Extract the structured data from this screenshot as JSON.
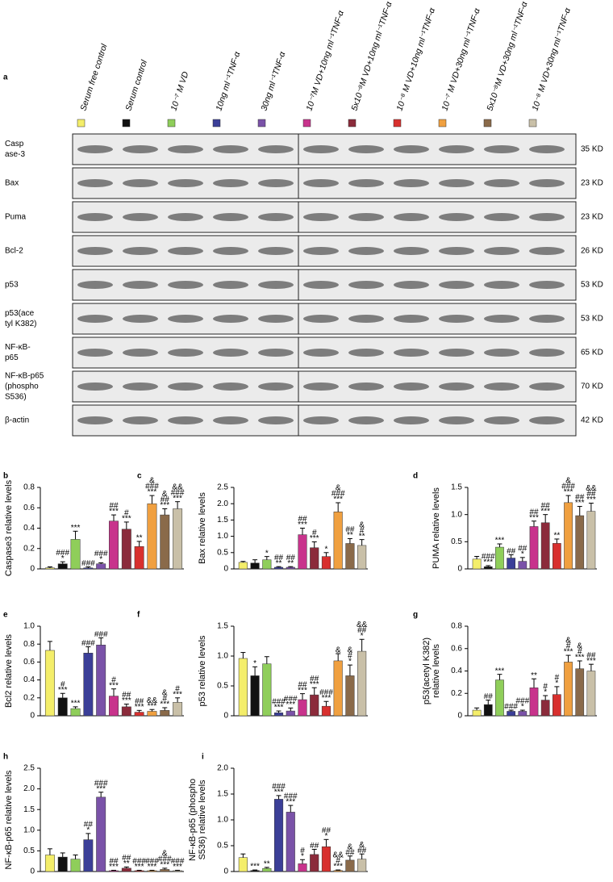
{
  "panel_a": {
    "label": "a",
    "legend": [
      {
        "label": "Serum free control",
        "color": "#f4ee6a"
      },
      {
        "label": "Serum control",
        "color": "#111111"
      },
      {
        "label": "10⁻⁷ M VD",
        "color": "#8fce5a"
      },
      {
        "label": "10ng ml⁻¹TNF-α",
        "color": "#3b3f98"
      },
      {
        "label": "30ng ml⁻¹TNF-α",
        "color": "#7a52a8"
      },
      {
        "label": "10⁻⁷M VD+10ng ml⁻¹TNF-α",
        "color": "#c8338c"
      },
      {
        "label": "5x10⁻⁸M VD+10ng ml⁻¹TNF-α",
        "color": "#8b2b3b"
      },
      {
        "label": "10⁻⁸ M VD+10ng ml⁻¹TNF-α",
        "color": "#d8302e"
      },
      {
        "label": "10⁻⁷ M VD+30ng ml⁻¹TNF-α",
        "color": "#f0a040"
      },
      {
        "label": "5x10⁻⁸M VD+30ng ml⁻¹TNF-α",
        "color": "#8a6a4a"
      },
      {
        "label": "10⁻⁸ M VD+30ng ml⁻¹TNF-α",
        "color": "#c9c0a8"
      }
    ],
    "blots": [
      {
        "lines": [
          "Casp",
          "ase-3"
        ],
        "size": "35 KD"
      },
      {
        "lines": [
          "Bax"
        ],
        "size": "23 KD"
      },
      {
        "lines": [
          "Puma"
        ],
        "size": "23 KD"
      },
      {
        "lines": [
          "Bcl-2"
        ],
        "size": "26 KD"
      },
      {
        "lines": [
          "p53"
        ],
        "size": "53 KD"
      },
      {
        "lines": [
          "p53(ace",
          "tyl K382)"
        ],
        "size": "53 KD"
      },
      {
        "lines": [
          "NF-κB-",
          "p65"
        ],
        "size": "65 KD"
      },
      {
        "lines": [
          "NF-κB-p65",
          "(phospho",
          "S536)"
        ],
        "size": "70 KD"
      },
      {
        "lines": [
          "β-actin"
        ],
        "size": "42 KD"
      }
    ]
  },
  "chart_data": [
    {
      "type": "bar",
      "panel": "b",
      "ylabel": [
        "Caspase3 relative levels"
      ],
      "values": [
        0.01,
        0.05,
        0.29,
        0.01,
        0.05,
        0.47,
        0.39,
        0.22,
        0.64,
        0.53,
        0.59
      ],
      "errors": [
        0.01,
        0.02,
        0.08,
        0.01,
        0.01,
        0.06,
        0.07,
        0.05,
        0.08,
        0.06,
        0.07
      ],
      "annotations": [
        [],
        [
          "###",
          "*"
        ],
        [
          "***"
        ],
        [
          "###"
        ],
        [
          "###",
          "*"
        ],
        [
          "##",
          "***"
        ],
        [
          "#",
          "***"
        ],
        [
          "**"
        ],
        [
          "&",
          "###",
          "***"
        ],
        [
          "&",
          "##",
          "***"
        ],
        [
          "&&",
          "###",
          "***"
        ]
      ],
      "ylim": [
        0,
        0.8
      ],
      "yticks": [
        0,
        0.2,
        0.4,
        0.6,
        0.8
      ]
    },
    {
      "type": "bar",
      "panel": "c",
      "ylabel": [
        "Bax relative levels"
      ],
      "values": [
        0.2,
        0.18,
        0.28,
        0.05,
        0.05,
        1.05,
        0.65,
        0.38,
        1.75,
        0.78,
        0.72
      ],
      "errors": [
        0.03,
        0.1,
        0.1,
        0.02,
        0.02,
        0.2,
        0.18,
        0.12,
        0.28,
        0.15,
        0.18
      ],
      "annotations": [
        [],
        [],
        [
          "*"
        ],
        [
          "##",
          "**"
        ],
        [
          "##",
          "**"
        ],
        [
          "##",
          "***"
        ],
        [
          "#",
          "***"
        ],
        [
          "*"
        ],
        [
          "&",
          "###",
          "***"
        ],
        [
          "##",
          "**"
        ],
        [
          "&",
          "#",
          "**"
        ]
      ],
      "ylim": [
        0,
        2.5
      ],
      "yticks": [
        0,
        0.5,
        {
          "value": 1,
          "label": "1.0"
        },
        1.5,
        {
          "value": 2,
          "label": "2.0"
        },
        2.5
      ]
    },
    {
      "type": "bar",
      "panel": "d",
      "ylabel": [
        "PUMA relative levels"
      ],
      "values": [
        0.18,
        0.04,
        0.4,
        0.2,
        0.14,
        0.78,
        0.85,
        0.47,
        1.22,
        0.98,
        1.06
      ],
      "errors": [
        0.05,
        0.02,
        0.06,
        0.06,
        0.07,
        0.1,
        0.15,
        0.08,
        0.13,
        0.17,
        0.15
      ],
      "annotations": [
        [],
        [
          "###",
          "***"
        ],
        [
          "***"
        ],
        [
          "##"
        ],
        [
          "##",
          "*"
        ],
        [
          "##",
          "***"
        ],
        [
          "##",
          "***"
        ],
        [
          "**"
        ],
        [
          "&",
          "###",
          "***"
        ],
        [
          "##",
          "***"
        ],
        [
          "&&",
          "##",
          "***"
        ]
      ],
      "ylim": [
        0,
        1.5
      ],
      "yticks": [
        0,
        0.5,
        {
          "value": 1,
          "label": "1.0"
        },
        1.5
      ]
    },
    {
      "type": "bar",
      "panel": "e",
      "ylabel": [
        "Bcl2 relative levels"
      ],
      "values": [
        0.73,
        0.2,
        0.08,
        0.7,
        0.79,
        0.22,
        0.1,
        0.04,
        0.05,
        0.06,
        0.15
      ],
      "errors": [
        0.1,
        0.05,
        0.02,
        0.07,
        0.08,
        0.08,
        0.03,
        0.02,
        0.02,
        0.03,
        0.05
      ],
      "annotations": [
        [],
        [
          "#",
          "***"
        ],
        [
          "***"
        ],
        [
          "###"
        ],
        [
          "###"
        ],
        [
          "#",
          "***"
        ],
        [
          "##",
          "***"
        ],
        [
          "##",
          "***"
        ],
        [
          "&&",
          "***"
        ],
        [
          "&",
          "#",
          "***"
        ],
        [
          "#",
          "***"
        ]
      ],
      "ylim": [
        0,
        1
      ],
      "yticks": [
        0,
        0.2,
        0.4,
        0.6,
        0.8,
        {
          "value": 1,
          "label": "1.0"
        }
      ]
    },
    {
      "type": "bar",
      "panel": "f",
      "ylabel": [
        "p53 relative levels"
      ],
      "values": [
        0.96,
        0.67,
        0.87,
        0.05,
        0.08,
        0.27,
        0.35,
        0.16,
        0.92,
        0.67,
        1.08
      ],
      "errors": [
        0.1,
        0.15,
        0.12,
        0.03,
        0.05,
        0.1,
        0.12,
        0.08,
        0.12,
        0.18,
        0.2
      ],
      "annotations": [
        [],
        [
          "*"
        ],
        [],
        [
          "###",
          "***"
        ],
        [
          "###",
          "***"
        ],
        [
          "##",
          "***"
        ],
        [
          "##",
          "***"
        ],
        [
          "###",
          "***"
        ],
        [
          "&"
        ],
        [
          "&",
          "#",
          "*"
        ],
        [
          "&&",
          "##",
          "*"
        ]
      ],
      "ylim": [
        0,
        1.5
      ],
      "yticks": [
        0,
        0.5,
        {
          "value": 1,
          "label": "1.0"
        },
        1.5
      ]
    },
    {
      "type": "bar",
      "panel": "g",
      "ylabel": [
        "p53(acetyl K382)",
        "relative levels"
      ],
      "values": [
        0.05,
        0.1,
        0.32,
        0.04,
        0.04,
        0.25,
        0.14,
        0.19,
        0.48,
        0.42,
        0.4
      ],
      "errors": [
        0.02,
        0.04,
        0.05,
        0.01,
        0.01,
        0.08,
        0.04,
        0.07,
        0.06,
        0.07,
        0.06
      ],
      "annotations": [
        [],
        [
          "##"
        ],
        [
          "***"
        ],
        [
          "###"
        ],
        [
          "###",
          "*"
        ],
        [
          "**"
        ],
        [
          "#",
          "*"
        ],
        [
          "#",
          "*"
        ],
        [
          "&",
          "#",
          "***"
        ],
        [
          "&",
          "#",
          "***"
        ],
        [
          "##",
          "***"
        ]
      ],
      "ylim": [
        0,
        0.8
      ],
      "yticks": [
        0,
        0.2,
        0.4,
        0.6,
        0.8
      ]
    },
    {
      "type": "bar",
      "panel": "h",
      "ylabel": [
        "NF-κB-p65 relative levels"
      ],
      "values": [
        0.4,
        0.35,
        0.3,
        0.77,
        1.8,
        0.02,
        0.08,
        0.02,
        0.02,
        0.05,
        0.02
      ],
      "errors": [
        0.15,
        0.1,
        0.1,
        0.15,
        0.12,
        0.01,
        0.03,
        0.01,
        0.01,
        0.03,
        0.01
      ],
      "annotations": [
        [],
        [],
        [],
        [
          "##",
          "*"
        ],
        [
          "###",
          "***"
        ],
        [
          "##",
          "***"
        ],
        [
          "##",
          "**"
        ],
        [
          "###",
          "***"
        ],
        [
          "###",
          "***"
        ],
        [
          "&",
          "###",
          "***"
        ],
        [
          "###",
          "***"
        ]
      ],
      "ylim": [
        0,
        2.5
      ],
      "yticks": [
        0,
        0.5,
        {
          "value": 1,
          "label": "1.0"
        },
        1.5,
        {
          "value": 2,
          "label": "2.0"
        },
        2.5
      ]
    },
    {
      "type": "bar",
      "panel": "i",
      "ylabel": [
        "NF-κB-p65 (phospho",
        "S536) relative levels"
      ],
      "values": [
        0.27,
        0.02,
        0.06,
        1.4,
        1.15,
        0.15,
        0.33,
        0.48,
        0.02,
        0.22,
        0.24
      ],
      "errors": [
        0.07,
        0.01,
        0.02,
        0.07,
        0.13,
        0.08,
        0.1,
        0.14,
        0.01,
        0.08,
        0.1
      ],
      "annotations": [
        [],
        [
          "***"
        ],
        [
          "**"
        ],
        [
          "###",
          "***"
        ],
        [
          "###",
          "***"
        ],
        [
          "#",
          "*"
        ],
        [
          "##"
        ],
        [
          "##",
          "*"
        ],
        [
          "&&",
          "#",
          "***"
        ],
        [
          "&",
          "##"
        ],
        [
          "&",
          "##"
        ]
      ],
      "ylim": [
        0,
        2
      ],
      "yticks": [
        0,
        0.5,
        {
          "value": 1,
          "label": "1.0"
        },
        1.5,
        {
          "value": 2,
          "label": "2.0"
        }
      ]
    }
  ]
}
